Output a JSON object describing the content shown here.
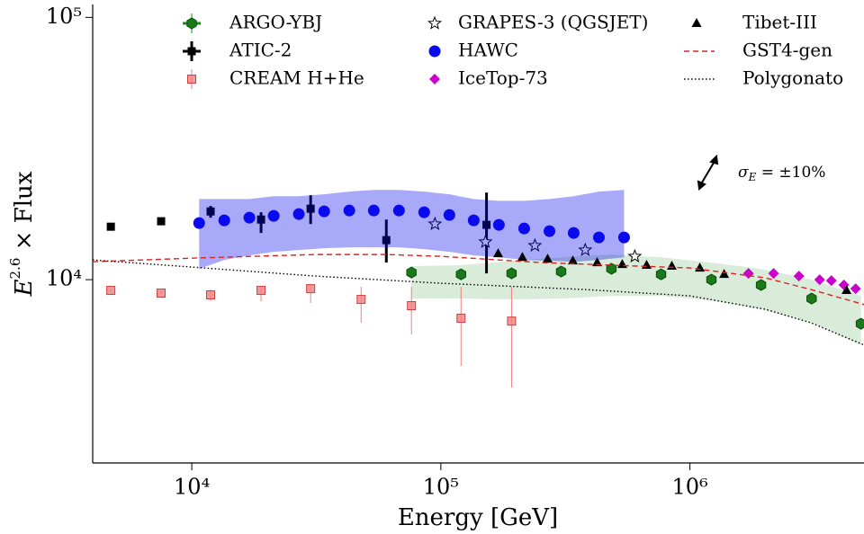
{
  "chart_data": {
    "type": "scatter",
    "xlabel": "Energy [GeV]",
    "ylabel": [
      "E",
      "2.6",
      " × Flux"
    ],
    "annotation": [
      "σ",
      "E",
      " = ±10%"
    ],
    "xscale": "log",
    "yscale": "log",
    "xlim": [
      4000,
      5000000
    ],
    "ylim": [
      2000,
      112000
    ],
    "xticks": [
      {
        "value": 10000,
        "label": "10⁴"
      },
      {
        "value": 100000,
        "label": "10⁵"
      },
      {
        "value": 1000000,
        "label": "10⁶"
      }
    ],
    "yticks": [
      {
        "value": 10000,
        "label": "10⁴"
      },
      {
        "value": 100000,
        "label": "10⁵"
      }
    ],
    "legend": "top",
    "series": [
      {
        "name": "ARGO-YBJ",
        "marker": "hexagon",
        "color": "#1f8a1f",
        "x": [
          76200,
          120500,
          192300,
          304000,
          484000,
          766000,
          1220000,
          1930000,
          3080000,
          4860000
        ],
        "values": [
          10650,
          10480,
          10570,
          10740,
          11000,
          10480,
          10000,
          9540,
          8470,
          6790
        ],
        "band_high": [
          11260,
          11350,
          11800,
          12170,
          12470,
          12170,
          11620,
          10990,
          10000,
          8675
        ],
        "band_low": [
          8473,
          8473,
          8410,
          8473,
          8675,
          8675,
          8340,
          7710,
          6850,
          5620
        ]
      },
      {
        "name": "ATIC-2",
        "marker": "square",
        "color": "#000000",
        "x": [
          4730,
          7530,
          11900,
          18970,
          30000,
          60400,
          152500
        ],
        "values": [
          15920,
          16700,
          18200,
          16950,
          18650,
          14150,
          16180
        ],
        "ylow": [
          15550,
          16300,
          17230,
          15070,
          16300,
          11620,
          10570
        ],
        "yhigh": [
          16300,
          17100,
          19100,
          18070,
          20990,
          16950,
          21480
        ]
      },
      {
        "name": "CREAM H+He",
        "marker": "square",
        "color": "#f08080",
        "x": [
          4730,
          7530,
          11900,
          18970,
          30000,
          47850,
          76200,
          120500,
          192300
        ],
        "values": [
          9100,
          8890,
          8750,
          9100,
          9240,
          8410,
          7960,
          7130,
          6950
        ],
        "ylow": [
          9000,
          8800,
          8280,
          8280,
          8150,
          6850,
          6180,
          4690,
          3880
        ],
        "yhigh": [
          9200,
          9000,
          9170,
          9390,
          9620,
          9390,
          9390,
          9390,
          9390
        ]
      },
      {
        "name": "GRAPES-3 (QGSJET)",
        "marker": "star",
        "color": "#000000",
        "x": [
          94700,
          151000,
          238600,
          380000,
          601000
        ],
        "values": [
          16300,
          13930,
          13490,
          12970,
          12270
        ]
      },
      {
        "name": "HAWC",
        "marker": "circle",
        "color": "#0a0aee",
        "x": [
          10700,
          13500,
          17030,
          21320,
          26900,
          34000,
          42900,
          53800,
          67900,
          85700,
          108200,
          135500,
          171000,
          216000,
          272900,
          341400,
          431100,
          544000
        ],
        "values": [
          16440,
          16830,
          17230,
          17510,
          17780,
          18210,
          18350,
          18350,
          18350,
          18070,
          17650,
          16830,
          16180,
          15670,
          15310,
          15070,
          14490,
          14490
        ],
        "band_high": [
          20310,
          20310,
          20310,
          20800,
          20800,
          21150,
          21670,
          21980,
          21980,
          21670,
          21150,
          20310,
          19990,
          19990,
          20310,
          20800,
          21670,
          21980
        ],
        "band_low": [
          10990,
          11890,
          12370,
          12770,
          12970,
          13180,
          13280,
          13280,
          13280,
          13070,
          12770,
          12370,
          12170,
          11890,
          11800,
          11700,
          11890,
          12170
        ]
      },
      {
        "name": "IceTop-73",
        "marker": "diamond",
        "color": "#cc00cc",
        "x": [
          1718000,
          2168000,
          2740000,
          3318000,
          3698000,
          4153000,
          4627000
        ],
        "values": [
          10570,
          10570,
          10320,
          10000,
          9920,
          9540,
          9240
        ]
      },
      {
        "name": "Tibet-III",
        "marker": "triangle",
        "color": "#000000",
        "x": [
          169800,
          212400,
          268300,
          338800,
          424200,
          535000,
          670000,
          846000,
          1096000,
          1372000,
          4256000
        ],
        "values": [
          12570,
          12170,
          11990,
          11800,
          11620,
          11430,
          11350,
          11260,
          11080,
          10480,
          9100
        ]
      },
      {
        "name": "GST4-gen",
        "linestyle": "dashed",
        "color": "#e02020",
        "x": [
          4000,
          10000,
          31260,
          60950,
          100000,
          251000,
          1000000,
          2010000,
          3060000,
          5040000
        ],
        "values": [
          11700,
          12080,
          12470,
          12470,
          12270,
          11620,
          11080,
          10160,
          9170,
          8020
        ]
      },
      {
        "name": "Polygonato",
        "linestyle": "dotted",
        "color": "#000000",
        "x": [
          4000,
          10000,
          31260,
          100000,
          380000,
          1000000,
          2010000,
          3060000,
          5040000
        ],
        "values": [
          11890,
          11170,
          10320,
          9690,
          9170,
          8675,
          7710,
          6850,
          5620
        ]
      }
    ]
  }
}
